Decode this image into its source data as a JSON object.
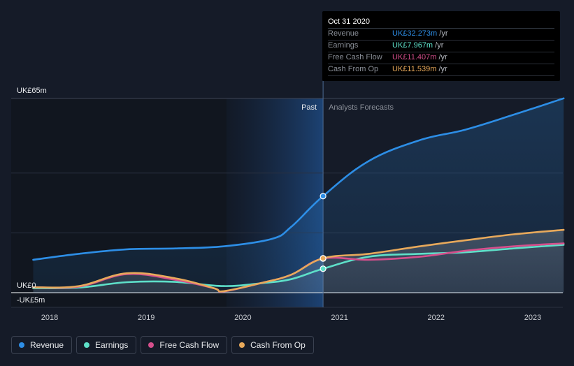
{
  "chart_data": {
    "type": "line",
    "x_unit": "year",
    "x_ticks": [
      "2018",
      "2019",
      "2020",
      "2021",
      "2022",
      "2023"
    ],
    "y_ticks": [
      "UK£65m",
      "UK£0",
      "-UK£5m"
    ],
    "ylim": [
      -5,
      65
    ],
    "past_label": "Past",
    "forecast_label": "Analysts Forecasts",
    "forecast_start": 2020.83,
    "series": [
      {
        "name": "Revenue",
        "color": "#2d8ee6",
        "points": [
          [
            2017.83,
            11
          ],
          [
            2018.3,
            13
          ],
          [
            2018.8,
            14.5
          ],
          [
            2019.3,
            14.8
          ],
          [
            2019.8,
            15.5
          ],
          [
            2020.3,
            18
          ],
          [
            2020.5,
            22
          ],
          [
            2020.83,
            32.3
          ],
          [
            2021.3,
            44
          ],
          [
            2021.83,
            51
          ],
          [
            2022.3,
            54.5
          ],
          [
            2022.8,
            59.5
          ],
          [
            2023.32,
            65
          ]
        ]
      },
      {
        "name": "Earnings",
        "color": "#5ee0c9",
        "points": [
          [
            2017.83,
            1.5
          ],
          [
            2018.3,
            1.7
          ],
          [
            2018.8,
            3.5
          ],
          [
            2019.3,
            3.6
          ],
          [
            2019.8,
            2.2
          ],
          [
            2020.2,
            3.2
          ],
          [
            2020.5,
            4.5
          ],
          [
            2020.83,
            8
          ],
          [
            2021.3,
            12
          ],
          [
            2021.83,
            13
          ],
          [
            2022.3,
            13.5
          ],
          [
            2022.8,
            14.8
          ],
          [
            2023.32,
            16
          ]
        ]
      },
      {
        "name": "Free Cash Flow",
        "color": "#d54f8c",
        "points": [
          [
            2017.83,
            1.8
          ],
          [
            2018.3,
            2
          ],
          [
            2018.8,
            6.2
          ],
          [
            2019.3,
            4.3
          ],
          [
            2019.7,
            1.5
          ],
          [
            2019.8,
            0.4
          ],
          [
            2020.2,
            3.3
          ],
          [
            2020.5,
            6
          ],
          [
            2020.83,
            11.4
          ],
          [
            2021.3,
            11
          ],
          [
            2021.83,
            12
          ],
          [
            2022.3,
            14
          ],
          [
            2022.8,
            15.5
          ],
          [
            2023.32,
            16.5
          ]
        ]
      },
      {
        "name": "Cash From Op",
        "color": "#e8a95b",
        "points": [
          [
            2017.83,
            1.8
          ],
          [
            2018.3,
            2.2
          ],
          [
            2018.8,
            6.5
          ],
          [
            2019.3,
            4.8
          ],
          [
            2019.7,
            1.5
          ],
          [
            2019.8,
            0.5
          ],
          [
            2020.2,
            3.3
          ],
          [
            2020.5,
            6
          ],
          [
            2020.83,
            11.5
          ],
          [
            2021.3,
            13
          ],
          [
            2021.83,
            15.5
          ],
          [
            2022.3,
            17.5
          ],
          [
            2022.8,
            19.5
          ],
          [
            2023.32,
            21
          ]
        ]
      }
    ]
  },
  "tooltip": {
    "date": "Oct 31 2020",
    "unit": "/yr",
    "rows": [
      {
        "label": "Revenue",
        "value": "UK£32.273m",
        "color": "#2d8ee6"
      },
      {
        "label": "Earnings",
        "value": "UK£7.967m",
        "color": "#5ee0c9"
      },
      {
        "label": "Free Cash Flow",
        "value": "UK£11.407m",
        "color": "#d54f8c"
      },
      {
        "label": "Cash From Op",
        "value": "UK£11.539m",
        "color": "#e8a95b"
      }
    ]
  },
  "legend": [
    {
      "label": "Revenue",
      "color": "#2d8ee6"
    },
    {
      "label": "Earnings",
      "color": "#5ee0c9"
    },
    {
      "label": "Free Cash Flow",
      "color": "#d54f8c"
    },
    {
      "label": "Cash From Op",
      "color": "#e8a95b"
    }
  ]
}
